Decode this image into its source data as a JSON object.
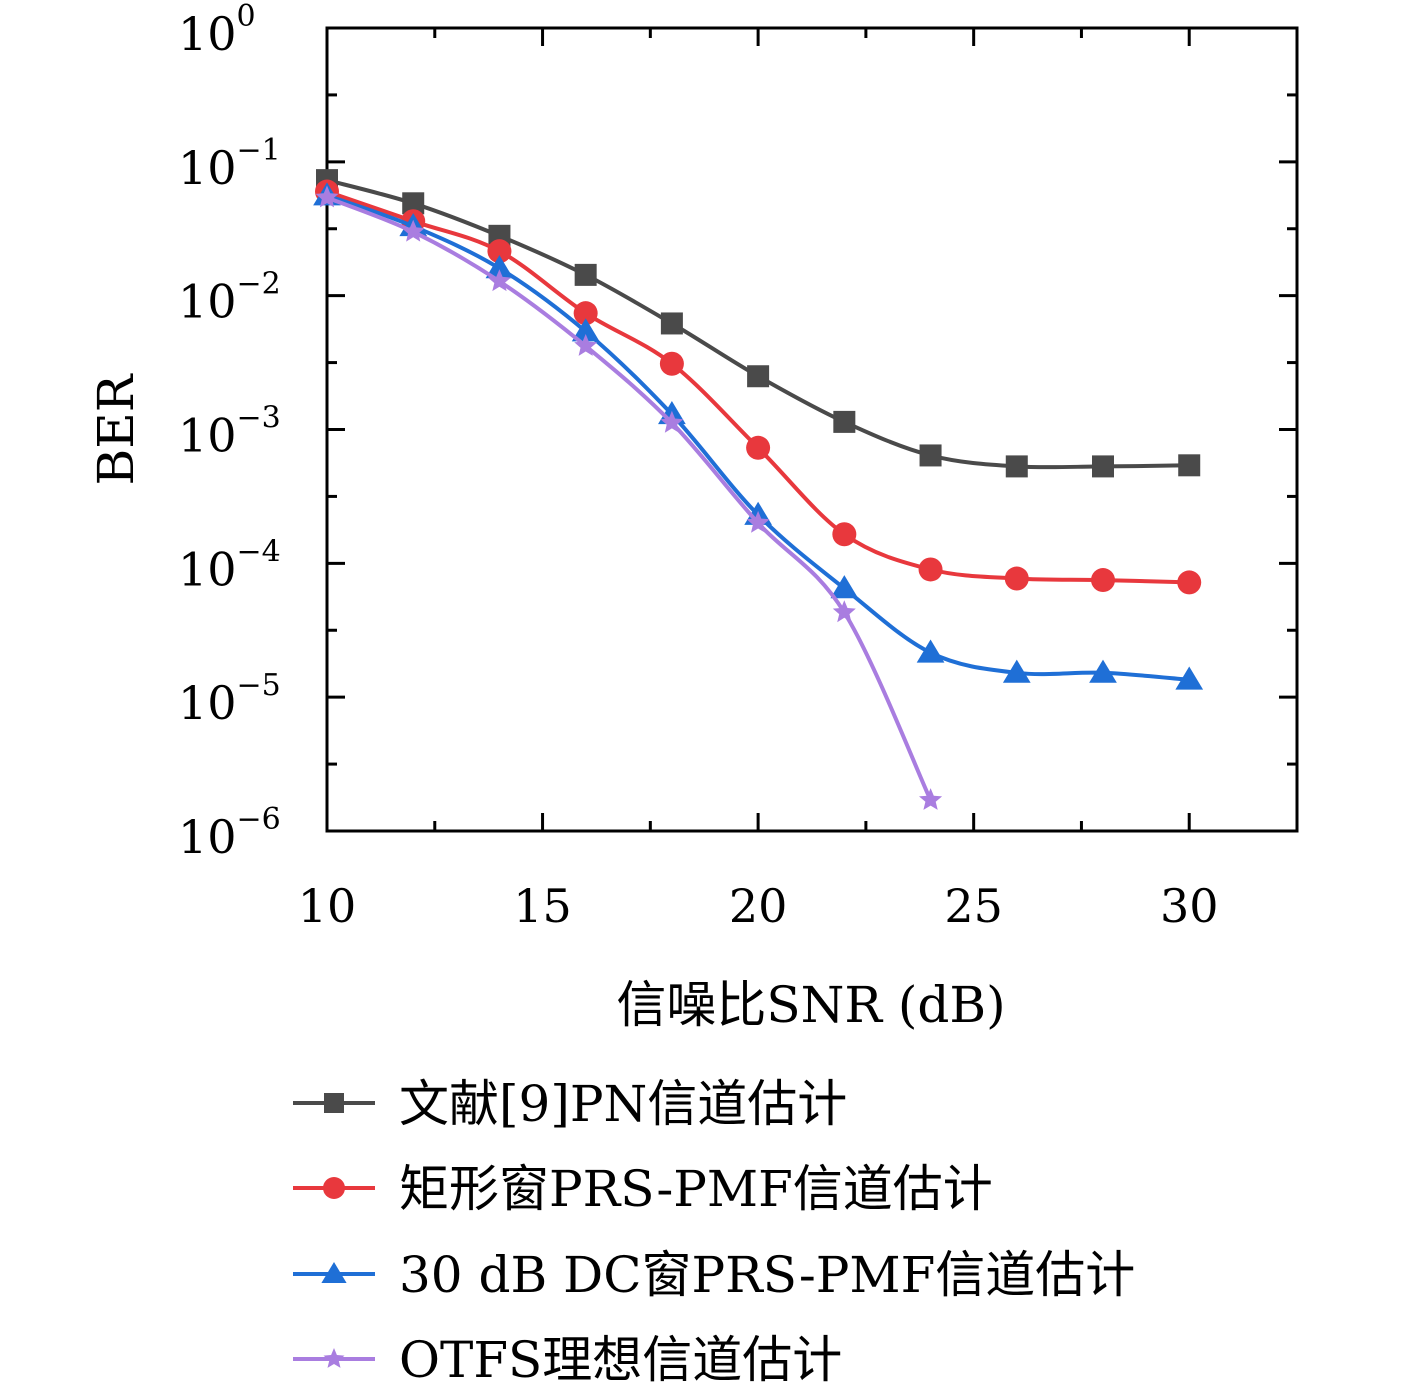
{
  "chart_data": {
    "type": "line",
    "title": "",
    "xlabel": "信噪比SNR (dB)",
    "ylabel": "BER",
    "xlim": [
      10,
      32.5
    ],
    "ylim": [
      1e-06,
      1
    ],
    "yscale": "log",
    "x_ticks": [
      "10",
      "15",
      "20",
      "25",
      "30"
    ],
    "y_ticks": [
      {
        "base": "10",
        "exp": "0"
      },
      {
        "base": "10",
        "exp": "−1"
      },
      {
        "base": "10",
        "exp": "−2"
      },
      {
        "base": "10",
        "exp": "−3"
      },
      {
        "base": "10",
        "exp": "−4"
      },
      {
        "base": "10",
        "exp": "−5"
      },
      {
        "base": "10",
        "exp": "−6"
      }
    ],
    "grid": false,
    "legend_position": "bottom",
    "series": [
      {
        "name": "文献[9]PN信道估计",
        "color": "#4a4a4a",
        "marker": "square",
        "x": [
          10,
          12,
          14,
          16,
          18,
          20,
          22,
          24,
          26,
          28,
          30
        ],
        "y": [
          0.073,
          0.049,
          0.028,
          0.0143,
          0.0062,
          0.0025,
          0.00114,
          0.00064,
          0.00053,
          0.00053,
          0.00054
        ]
      },
      {
        "name": "矩形窗PRS-PMF信道估计",
        "color": "#e8383d",
        "marker": "circle",
        "x": [
          10,
          12,
          14,
          16,
          18,
          20,
          22,
          24,
          26,
          28,
          30
        ],
        "y": [
          0.06,
          0.036,
          0.0215,
          0.0074,
          0.0031,
          0.00073,
          0.000165,
          9e-05,
          7.7e-05,
          7.5e-05,
          7.2e-05
        ]
      },
      {
        "name": "30 dB DC窗PRS-PMF信道估计",
        "color": "#1f6fd6",
        "marker": "triangle",
        "x": [
          10,
          12,
          14,
          16,
          18,
          20,
          22,
          24,
          26,
          28,
          30
        ],
        "y": [
          0.056,
          0.033,
          0.016,
          0.0054,
          0.0013,
          0.00023,
          6.5e-05,
          2.15e-05,
          1.52e-05,
          1.52e-05,
          1.35e-05
        ]
      },
      {
        "name": "OTFS理想信道估计",
        "color": "#a97de0",
        "marker": "star",
        "x": [
          10,
          12,
          14,
          16,
          18,
          20,
          22,
          24
        ],
        "y": [
          0.054,
          0.03,
          0.0128,
          0.0042,
          0.00112,
          0.0002,
          4.3e-05,
          1.7e-06
        ]
      }
    ]
  }
}
